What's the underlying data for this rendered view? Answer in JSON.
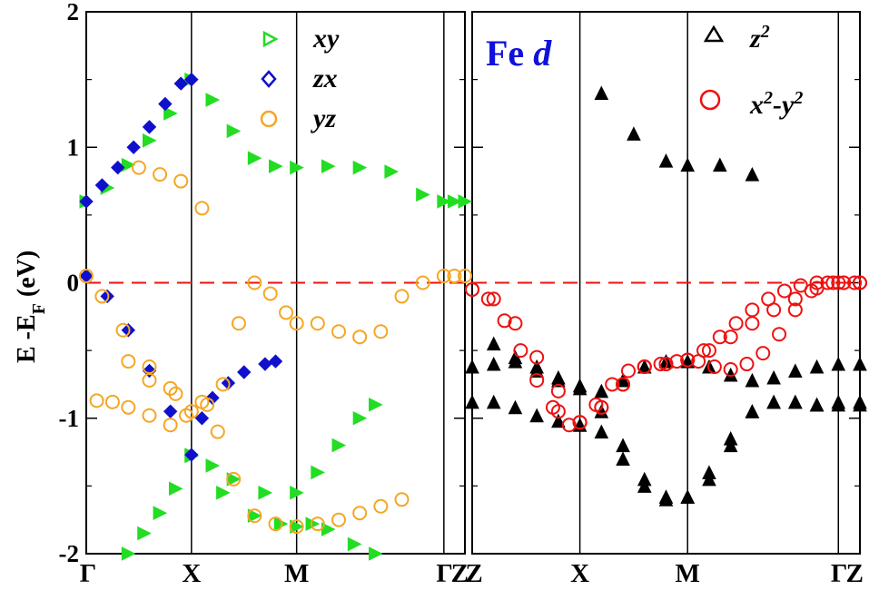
{
  "chart_data": [
    {
      "type": "scatter",
      "title": "",
      "ylabel": "E -E_F (eV)",
      "ylim": [
        -2,
        2
      ],
      "yticks": [
        -2,
        -1,
        0,
        1,
        2
      ],
      "ytick_labels": [
        "-2",
        "-1",
        "0",
        "1",
        "2"
      ],
      "kpoints": [
        "Γ",
        "X",
        "M",
        "Γ",
        "Z"
      ],
      "kpoint_positions": [
        0,
        1,
        2,
        3.4,
        3.6
      ],
      "fermi_level": 0,
      "series": [
        {
          "name": "xy",
          "marker": "triangle-right",
          "color": "#22dd22",
          "x": [
            0.0,
            0.2,
            0.4,
            0.6,
            0.8,
            1.0,
            1.2,
            1.4,
            1.6,
            1.8,
            2.0,
            2.3,
            2.6,
            2.9,
            3.2,
            3.4,
            3.5,
            3.6,
            0.4,
            0.55,
            0.7,
            0.85,
            1.0,
            1.2,
            1.4,
            1.7,
            2.0,
            2.2,
            2.4,
            2.6,
            2.75,
            1.0,
            1.3,
            1.6,
            1.85,
            2.0,
            2.15,
            2.3,
            2.55,
            2.75
          ],
          "y": [
            0.6,
            0.7,
            0.87,
            1.05,
            1.25,
            1.5,
            1.35,
            1.12,
            0.92,
            0.86,
            0.85,
            0.86,
            0.85,
            0.82,
            0.65,
            0.6,
            0.6,
            0.6,
            -2.0,
            -1.85,
            -1.7,
            -1.52,
            -1.27,
            -1.35,
            -1.45,
            -1.55,
            -1.55,
            -1.4,
            -1.2,
            -1.0,
            -0.9,
            -1.28,
            -1.55,
            -1.72,
            -1.78,
            -1.8,
            -1.78,
            -1.82,
            -1.93,
            -2.0
          ]
        },
        {
          "name": "zx",
          "marker": "diamond",
          "color": "#1010cc",
          "x": [
            0.0,
            0.15,
            0.3,
            0.45,
            0.6,
            0.75,
            0.9,
            1.0,
            0.0,
            0.2,
            0.4,
            0.6,
            0.8,
            1.0,
            1.1,
            1.2,
            1.35,
            1.5,
            1.7,
            1.8
          ],
          "y": [
            0.6,
            0.72,
            0.85,
            1.0,
            1.15,
            1.32,
            1.47,
            1.5,
            0.05,
            -0.1,
            -0.35,
            -0.65,
            -0.95,
            -1.27,
            -1.0,
            -0.85,
            -0.74,
            -0.66,
            -0.6,
            -0.58
          ]
        },
        {
          "name": "yz",
          "marker": "circle",
          "color": "#f5a623",
          "x": [
            0.0,
            0.15,
            0.35,
            0.6,
            0.85,
            1.0,
            1.15,
            1.3,
            1.45,
            1.6,
            1.75,
            1.9,
            2.0,
            2.2,
            2.4,
            2.6,
            2.8,
            3.0,
            3.2,
            3.4,
            3.5,
            3.6,
            0.1,
            0.25,
            0.4,
            0.6,
            0.8,
            0.95,
            1.1,
            1.25,
            1.4,
            1.6,
            1.8,
            2.0,
            2.2,
            2.4,
            2.6,
            2.8,
            3.0,
            0.5,
            0.7,
            0.9,
            1.1,
            0.4,
            0.6,
            0.8
          ],
          "y": [
            0.05,
            -0.1,
            -0.35,
            -0.62,
            -0.82,
            -0.95,
            -0.9,
            -0.75,
            -0.3,
            0.0,
            -0.08,
            -0.22,
            -0.3,
            -0.3,
            -0.36,
            -0.4,
            -0.36,
            -0.1,
            0.0,
            0.05,
            0.05,
            0.05,
            -0.87,
            -0.88,
            -0.92,
            -0.98,
            -1.05,
            -0.98,
            -0.88,
            -1.1,
            -1.45,
            -1.72,
            -1.78,
            -1.8,
            -1.78,
            -1.75,
            -1.7,
            -1.65,
            -1.6,
            0.85,
            0.8,
            0.75,
            0.55,
            -0.58,
            -0.72,
            -0.78
          ]
        }
      ],
      "legend": [
        "xy",
        "zx",
        "yz"
      ],
      "legend_position": "top"
    },
    {
      "type": "scatter",
      "title": "Fe d",
      "ylim": [
        -2,
        2
      ],
      "yticks": [
        -2,
        -1,
        0,
        1,
        2
      ],
      "kpoints": [
        "Z",
        "X",
        "M",
        "Γ",
        "Z"
      ],
      "kpoint_positions": [
        0,
        1,
        2,
        3.4,
        3.6
      ],
      "fermi_level": 0,
      "series": [
        {
          "name": "z²",
          "marker": "triangle-up",
          "color": "#000000",
          "x": [
            0.0,
            0.2,
            0.4,
            0.6,
            0.8,
            1.0,
            1.2,
            1.4,
            1.6,
            1.8,
            2.0,
            2.2,
            2.4,
            2.6,
            2.8,
            3.0,
            3.2,
            3.4,
            3.6,
            0.0,
            0.2,
            0.4,
            0.6,
            0.8,
            1.0,
            1.2,
            1.4,
            1.6,
            1.8,
            2.0,
            2.2,
            2.4,
            2.6,
            2.8,
            3.0,
            3.2,
            3.4,
            3.6,
            0.2,
            0.4,
            0.6,
            0.8,
            1.0,
            1.2,
            1.4,
            1.6,
            1.8,
            2.0,
            2.2,
            2.4,
            2.6,
            2.8,
            3.0,
            3.2,
            3.4,
            3.6,
            1.2,
            1.5,
            1.8,
            2.0,
            2.3,
            2.6
          ],
          "y": [
            -0.62,
            -0.6,
            -0.58,
            -0.62,
            -0.7,
            -0.76,
            -0.8,
            -0.72,
            -0.62,
            -0.58,
            -0.58,
            -0.62,
            -0.68,
            -0.72,
            -0.7,
            -0.65,
            -0.62,
            -0.6,
            -0.6,
            -0.88,
            -0.88,
            -0.92,
            -0.98,
            -1.02,
            -1.05,
            -1.1,
            -1.3,
            -1.5,
            -1.6,
            -1.58,
            -1.4,
            -1.15,
            -0.95,
            -0.88,
            -0.88,
            -0.9,
            -0.88,
            -0.88,
            -0.45,
            -0.55,
            -0.65,
            -0.72,
            -0.78,
            -0.95,
            -1.2,
            -1.45,
            -1.58,
            -1.58,
            -1.45,
            -1.2,
            -0.95,
            -0.88,
            -0.88,
            -0.9,
            -0.9,
            -0.9,
            1.4,
            1.1,
            0.9,
            0.87,
            0.87,
            0.8
          ]
        },
        {
          "name": "x²-y²",
          "marker": "circle",
          "color": "#ee1111",
          "x": [
            0.0,
            0.15,
            0.3,
            0.45,
            0.6,
            0.75,
            0.9,
            1.0,
            1.15,
            1.3,
            1.45,
            1.6,
            1.75,
            1.9,
            2.0,
            2.1,
            2.25,
            2.4,
            2.55,
            2.7,
            2.85,
            3.0,
            3.15,
            3.3,
            3.45,
            3.6,
            0.0,
            0.2,
            0.4,
            0.6,
            0.8,
            1.0,
            1.2,
            1.4,
            1.6,
            1.8,
            2.0,
            2.15,
            2.3,
            2.45,
            2.6,
            2.75,
            2.9,
            3.05,
            3.2,
            3.35,
            3.45,
            3.55,
            3.6,
            0.8,
            1.0,
            1.2,
            1.4,
            1.6,
            1.8,
            2.0,
            2.2,
            2.4,
            2.6,
            2.8,
            3.0,
            3.2,
            3.4,
            3.6
          ],
          "y": [
            -0.05,
            -0.12,
            -0.28,
            -0.5,
            -0.72,
            -0.92,
            -1.05,
            -1.03,
            -0.9,
            -0.75,
            -0.65,
            -0.62,
            -0.6,
            -0.58,
            -0.57,
            -0.58,
            -0.62,
            -0.64,
            -0.6,
            -0.52,
            -0.38,
            -0.2,
            -0.06,
            0.0,
            0.0,
            0.0,
            -0.05,
            -0.12,
            -0.3,
            -0.55,
            -0.8,
            -1.03,
            -0.92,
            -0.75,
            -0.62,
            -0.6,
            -0.57,
            -0.5,
            -0.4,
            -0.3,
            -0.2,
            -0.12,
            -0.06,
            -0.02,
            0.0,
            0.0,
            0.0,
            0.0,
            0.0,
            -0.95,
            -1.03,
            -0.92,
            -0.75,
            -0.62,
            -0.6,
            -0.57,
            -0.5,
            -0.4,
            -0.3,
            -0.2,
            -0.12,
            -0.04,
            0.0,
            0.0
          ]
        }
      ],
      "legend": [
        "z²",
        "x²-y²"
      ],
      "legend_position": "top-right"
    }
  ]
}
